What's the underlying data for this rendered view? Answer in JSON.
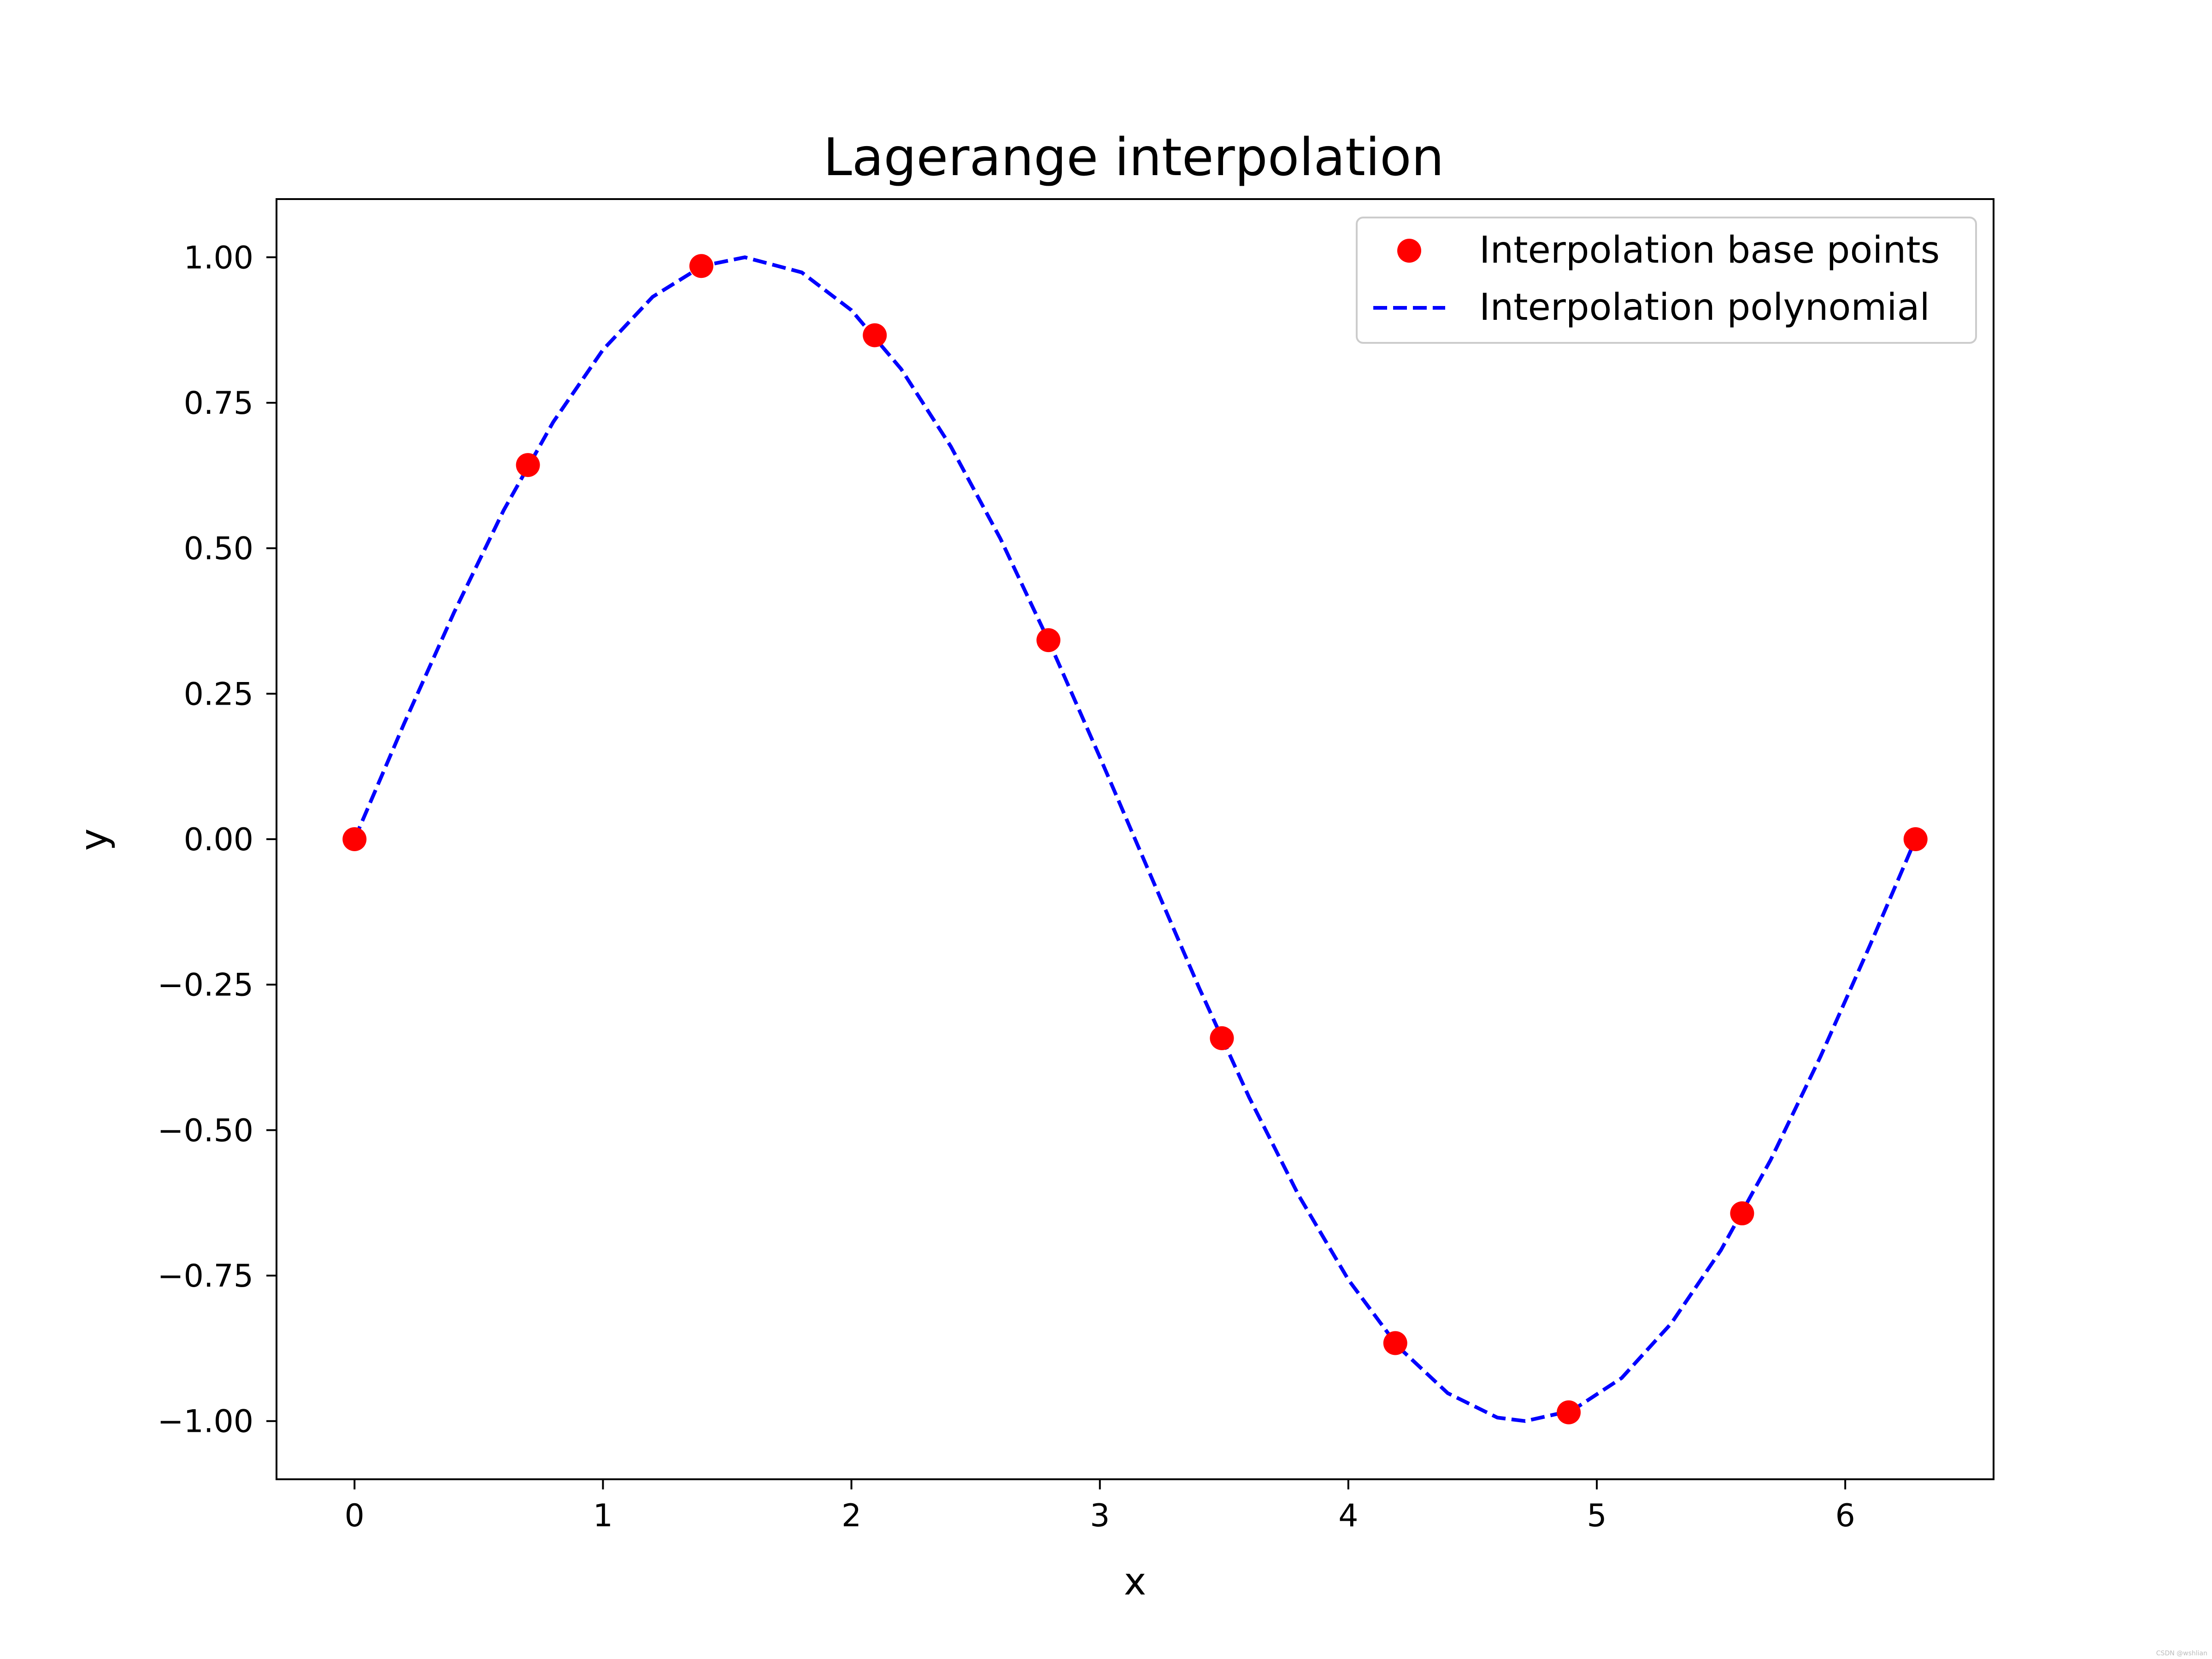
{
  "chart_data": {
    "type": "line",
    "title": "Lagerange interpolation",
    "xlabel": "x",
    "ylabel": "y",
    "xlim": [
      -0.314,
      6.597
    ],
    "ylim": [
      -1.1,
      1.1
    ],
    "xticks": [
      0,
      1,
      2,
      3,
      4,
      5,
      6
    ],
    "xtick_labels": [
      "0",
      "1",
      "2",
      "3",
      "4",
      "5",
      "6"
    ],
    "yticks": [
      1.0,
      0.75,
      0.5,
      0.25,
      0.0,
      -0.25,
      -0.5,
      -0.75,
      -1.0
    ],
    "ytick_labels": [
      "1.00",
      "0.75",
      "0.50",
      "0.25",
      "0.00",
      "−0.25",
      "−0.50",
      "−0.75",
      "−1.00"
    ],
    "grid": false,
    "legend_position": "top-right",
    "series": [
      {
        "name": "Interpolation base points",
        "kind": "scatter",
        "color": "#ff0000",
        "x": [
          0.0,
          0.698,
          1.396,
          2.094,
          2.793,
          3.491,
          4.189,
          4.887,
          5.585,
          6.283
        ],
        "y": [
          0.0,
          0.643,
          0.985,
          0.866,
          0.342,
          -0.342,
          -0.866,
          -0.985,
          -0.643,
          0.0
        ]
      },
      {
        "name": "Interpolation polynomial",
        "kind": "line",
        "style": "dashed",
        "color": "#0000ff",
        "x": [
          0.0,
          0.2,
          0.4,
          0.6,
          0.8,
          1.0,
          1.2,
          1.4,
          1.571,
          1.8,
          2.0,
          2.2,
          2.4,
          2.6,
          2.8,
          3.0,
          3.2,
          3.4,
          3.6,
          3.8,
          4.0,
          4.2,
          4.4,
          4.6,
          4.712,
          4.9,
          5.1,
          5.3,
          5.5,
          5.7,
          5.9,
          6.1,
          6.283
        ],
        "y": [
          0.0,
          0.199,
          0.389,
          0.565,
          0.717,
          0.841,
          0.932,
          0.985,
          1.0,
          0.974,
          0.909,
          0.808,
          0.675,
          0.516,
          0.335,
          0.141,
          -0.058,
          -0.256,
          -0.443,
          -0.612,
          -0.757,
          -0.872,
          -0.952,
          -0.994,
          -1.0,
          -0.982,
          -0.926,
          -0.832,
          -0.706,
          -0.551,
          -0.374,
          -0.182,
          0.0
        ]
      }
    ]
  },
  "watermark": "CSDN @wshlian"
}
